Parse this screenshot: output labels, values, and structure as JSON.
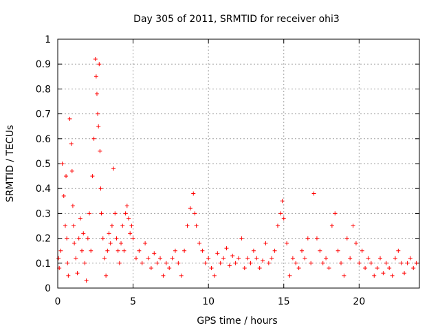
{
  "chart_data": {
    "type": "scatter",
    "title": "Day 305 of 2011, SRMTID for receiver ohi3",
    "xlabel": "GPS time / hours",
    "ylabel": "SRMTID / TECUs",
    "xlim": [
      0,
      24
    ],
    "ylim": [
      0,
      1
    ],
    "xticks": [
      "0",
      "5",
      "10",
      "15",
      "20"
    ],
    "yticks": [
      "0",
      "0.1",
      "0.2",
      "0.3",
      "0.4",
      "0.5",
      "0.6",
      "0.7",
      "0.8",
      "0.9",
      "1"
    ],
    "grid": true,
    "marker": "plus",
    "color": "#ff0000",
    "series": [
      {
        "name": "SRMTID",
        "x": [
          0.05,
          0.1,
          0.2,
          0.3,
          0.4,
          0.5,
          0.55,
          0.6,
          0.65,
          0.7,
          0.8,
          0.9,
          0.95,
          1.0,
          1.05,
          1.1,
          1.2,
          1.3,
          1.4,
          1.5,
          1.6,
          1.7,
          1.8,
          1.9,
          2.0,
          2.1,
          2.2,
          2.3,
          2.4,
          2.5,
          2.55,
          2.6,
          2.65,
          2.7,
          2.75,
          2.8,
          2.85,
          2.9,
          3.0,
          3.1,
          3.2,
          3.3,
          3.4,
          3.5,
          3.6,
          3.7,
          3.8,
          3.9,
          4.0,
          4.1,
          4.2,
          4.3,
          4.4,
          4.5,
          4.6,
          4.7,
          4.8,
          4.9,
          5.0,
          5.2,
          5.4,
          5.6,
          5.8,
          6.0,
          6.2,
          6.4,
          6.6,
          6.8,
          7.0,
          7.2,
          7.4,
          7.6,
          7.8,
          8.0,
          8.2,
          8.4,
          8.6,
          8.8,
          9.0,
          9.1,
          9.2,
          9.4,
          9.6,
          9.8,
          10.0,
          10.2,
          10.4,
          10.6,
          10.8,
          11.0,
          11.2,
          11.4,
          11.6,
          11.8,
          12.0,
          12.2,
          12.4,
          12.6,
          12.8,
          13.0,
          13.2,
          13.4,
          13.6,
          13.8,
          14.0,
          14.2,
          14.4,
          14.6,
          14.8,
          14.9,
          15.0,
          15.2,
          15.4,
          15.6,
          15.8,
          16.0,
          16.2,
          16.4,
          16.6,
          16.8,
          17.0,
          17.2,
          17.4,
          17.6,
          17.8,
          18.0,
          18.2,
          18.4,
          18.6,
          18.8,
          19.0,
          19.2,
          19.4,
          19.6,
          19.8,
          20.0,
          20.2,
          20.4,
          20.6,
          20.8,
          21.0,
          21.2,
          21.4,
          21.6,
          21.8,
          22.0,
          22.2,
          22.4,
          22.6,
          22.8,
          23.0,
          23.2,
          23.4,
          23.6,
          23.8
        ],
        "y": [
          0.12,
          0.08,
          0.15,
          0.5,
          0.37,
          0.25,
          0.45,
          0.2,
          0.1,
          0.05,
          0.68,
          0.58,
          0.47,
          0.33,
          0.25,
          0.18,
          0.12,
          0.06,
          0.2,
          0.28,
          0.15,
          0.22,
          0.1,
          0.03,
          0.2,
          0.3,
          0.15,
          0.45,
          0.6,
          0.92,
          0.85,
          0.78,
          0.7,
          0.65,
          0.9,
          0.55,
          0.4,
          0.3,
          0.2,
          0.12,
          0.05,
          0.15,
          0.22,
          0.18,
          0.25,
          0.48,
          0.3,
          0.2,
          0.15,
          0.1,
          0.18,
          0.25,
          0.15,
          0.3,
          0.33,
          0.28,
          0.22,
          0.25,
          0.2,
          0.12,
          0.15,
          0.1,
          0.18,
          0.12,
          0.08,
          0.14,
          0.1,
          0.12,
          0.05,
          0.1,
          0.08,
          0.12,
          0.15,
          0.1,
          0.05,
          0.15,
          0.25,
          0.32,
          0.38,
          0.3,
          0.25,
          0.18,
          0.15,
          0.1,
          0.12,
          0.08,
          0.05,
          0.14,
          0.1,
          0.12,
          0.16,
          0.09,
          0.13,
          0.1,
          0.12,
          0.2,
          0.08,
          0.12,
          0.1,
          0.15,
          0.12,
          0.08,
          0.11,
          0.18,
          0.1,
          0.12,
          0.15,
          0.25,
          0.3,
          0.35,
          0.28,
          0.18,
          0.05,
          0.12,
          0.1,
          0.08,
          0.15,
          0.12,
          0.2,
          0.1,
          0.38,
          0.2,
          0.15,
          0.1,
          0.12,
          0.08,
          0.25,
          0.3,
          0.15,
          0.1,
          0.05,
          0.2,
          0.12,
          0.25,
          0.18,
          0.1,
          0.15,
          0.08,
          0.12,
          0.1,
          0.05,
          0.08,
          0.12,
          0.06,
          0.1,
          0.08,
          0.05,
          0.12,
          0.15,
          0.1,
          0.06,
          0.1,
          0.12,
          0.08,
          0.1
        ]
      }
    ]
  }
}
